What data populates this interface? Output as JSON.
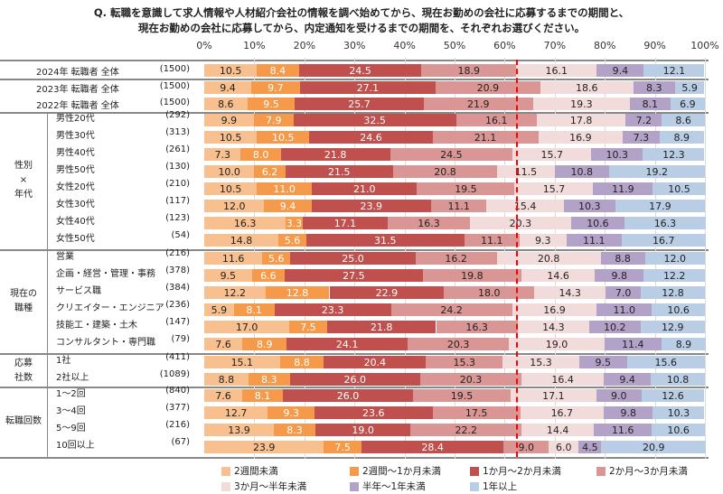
{
  "title_lines": [
    "Q.  転職を意識して求人情報や人材紹介会社の情報を調べ始めてから、現在お勤めの会社に応募するまでの期間と、",
    "現在お勤めの会社に応募してから、内定通知を受けるまでの期間を、それぞれお選びください。"
  ],
  "chart_data": {
    "type": "bar",
    "orientation": "horizontal",
    "stacked": true,
    "percent": true,
    "xlim": [
      0,
      100
    ],
    "ticks": [
      "0%",
      "10%",
      "20%",
      "30%",
      "40%",
      "50%",
      "60%",
      "70%",
      "80%",
      "90%",
      "100%"
    ],
    "legend_position": "bottom",
    "series": [
      {
        "name": "2週間未満",
        "color": "#f9c08f"
      },
      {
        "name": "2週間～1か月未満",
        "color": "#f59a4a"
      },
      {
        "name": "1か月～2か月未満",
        "color": "#c0504d"
      },
      {
        "name": "2か月～3か月未満",
        "color": "#d99694"
      },
      {
        "name": "3か月～半年未満",
        "color": "#f2dcdb"
      },
      {
        "name": "半年～1年未満",
        "color": "#b3a2c7"
      },
      {
        "name": "1年以上",
        "color": "#b9cde5"
      }
    ],
    "reference_line": {
      "style": "dashed",
      "color": "#ff0000",
      "cumulative_of_row": 0,
      "segments": 4
    },
    "groups": [
      {
        "label": "",
        "rows": [
          {
            "label": "2024年 転職者 全体",
            "n": "(1500)",
            "values": [
              10.5,
              8.4,
              24.5,
              18.9,
              16.1,
              9.4,
              12.1
            ]
          }
        ]
      },
      {
        "label": "",
        "rows": [
          {
            "label": "2023年 転職者 全体",
            "n": "(1500)",
            "values": [
              9.4,
              9.7,
              27.1,
              20.9,
              18.6,
              8.3,
              5.9
            ]
          },
          {
            "label": "2022年 転職者 全体",
            "n": "(1500)",
            "values": [
              8.6,
              9.5,
              25.7,
              21.9,
              19.3,
              8.1,
              6.9
            ]
          }
        ]
      },
      {
        "label": "性別\n×\n年代",
        "rows": [
          {
            "label": "男性20代",
            "n": "(292)",
            "values": [
              9.9,
              7.9,
              32.5,
              16.1,
              17.8,
              7.2,
              8.6
            ]
          },
          {
            "label": "男性30代",
            "n": "(313)",
            "values": [
              10.5,
              10.5,
              24.6,
              21.1,
              16.9,
              7.3,
              8.9
            ]
          },
          {
            "label": "男性40代",
            "n": "(261)",
            "values": [
              7.3,
              8.0,
              21.8,
              24.5,
              15.7,
              10.3,
              12.3
            ]
          },
          {
            "label": "男性50代",
            "n": "(130)",
            "values": [
              10.0,
              6.2,
              21.5,
              20.8,
              11.5,
              10.8,
              19.2
            ]
          },
          {
            "label": "女性20代",
            "n": "(210)",
            "values": [
              10.5,
              11.0,
              21.0,
              19.5,
              15.7,
              11.9,
              10.5
            ]
          },
          {
            "label": "女性30代",
            "n": "(117)",
            "values": [
              12.0,
              9.4,
              23.9,
              11.1,
              15.4,
              10.3,
              17.9
            ]
          },
          {
            "label": "女性40代",
            "n": "(123)",
            "values": [
              16.3,
              3.3,
              17.1,
              16.3,
              20.3,
              10.6,
              16.3
            ]
          },
          {
            "label": "女性50代",
            "n": "(54)",
            "values": [
              14.8,
              5.6,
              31.5,
              11.1,
              9.3,
              11.1,
              16.7
            ]
          }
        ]
      },
      {
        "label": "現在の\n職種",
        "rows": [
          {
            "label": "営業",
            "n": "(216)",
            "values": [
              11.6,
              5.6,
              25.0,
              16.2,
              20.8,
              8.8,
              12.0
            ]
          },
          {
            "label": "企画・経営・管理・事務",
            "n": "(378)",
            "values": [
              9.5,
              6.6,
              27.5,
              19.8,
              14.6,
              9.8,
              12.2
            ]
          },
          {
            "label": "サービス職",
            "n": "(384)",
            "values": [
              12.2,
              12.8,
              22.9,
              18.0,
              14.3,
              7.0,
              12.8
            ]
          },
          {
            "label": "クリエイター・エンジニア",
            "n": "(236)",
            "values": [
              5.9,
              8.1,
              23.3,
              24.2,
              16.9,
              11.0,
              10.6
            ]
          },
          {
            "label": "技能工・建築・土木",
            "n": "(147)",
            "values": [
              17.0,
              7.5,
              21.8,
              16.3,
              14.3,
              10.2,
              12.9
            ]
          },
          {
            "label": "コンサルタント・専門職",
            "n": "(79)",
            "values": [
              7.6,
              8.9,
              24.1,
              20.3,
              19.0,
              11.4,
              8.9
            ]
          }
        ]
      },
      {
        "label": "応募\n社数",
        "rows": [
          {
            "label": "1社",
            "n": "(411)",
            "values": [
              15.1,
              8.8,
              20.4,
              15.3,
              15.3,
              9.5,
              15.6
            ]
          },
          {
            "label": "2社以上",
            "n": "(1089)",
            "values": [
              8.8,
              8.3,
              26.0,
              20.3,
              16.4,
              9.4,
              10.8
            ]
          }
        ]
      },
      {
        "label": "転職回数",
        "rows": [
          {
            "label": "1～2回",
            "n": "(840)",
            "values": [
              7.6,
              8.1,
              26.0,
              19.5,
              17.1,
              9.0,
              12.6
            ]
          },
          {
            "label": "3～4回",
            "n": "(377)",
            "values": [
              12.7,
              9.3,
              23.6,
              17.5,
              16.7,
              9.8,
              10.3
            ]
          },
          {
            "label": "5～9回",
            "n": "(216)",
            "values": [
              13.9,
              8.3,
              19.0,
              22.2,
              14.4,
              11.6,
              10.6
            ]
          },
          {
            "label": "10回以上",
            "n": "(67)",
            "values": [
              23.9,
              7.5,
              28.4,
              9.0,
              6.0,
              4.5,
              20.9
            ]
          }
        ]
      }
    ]
  }
}
